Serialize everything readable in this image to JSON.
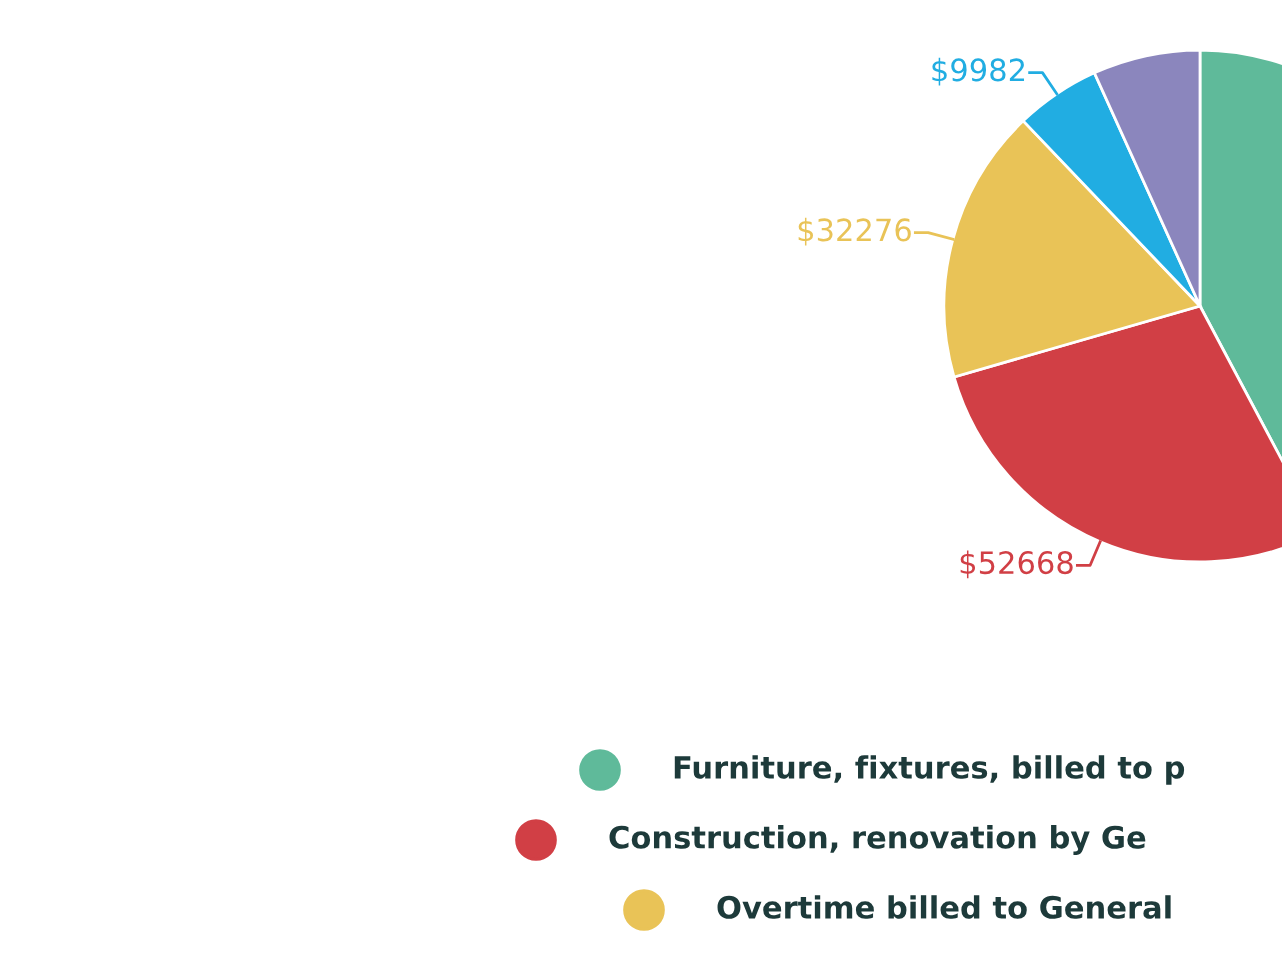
{
  "chart_data": {
    "type": "pie",
    "categories": [
      "Furniture, fixtures, billed to p",
      "Construction, renovation by Ge",
      "Overtime billed to General",
      null,
      null
    ],
    "values": [
      78600,
      52668,
      32276,
      9982,
      12600
    ],
    "colors": [
      "#5fba9a",
      "#d13f45",
      "#e9c357",
      "#21ade2",
      "#8b86bd"
    ],
    "value_labels": [
      null,
      "$52668",
      "$32276",
      "$9982",
      null
    ],
    "legend": "bottom"
  }
}
